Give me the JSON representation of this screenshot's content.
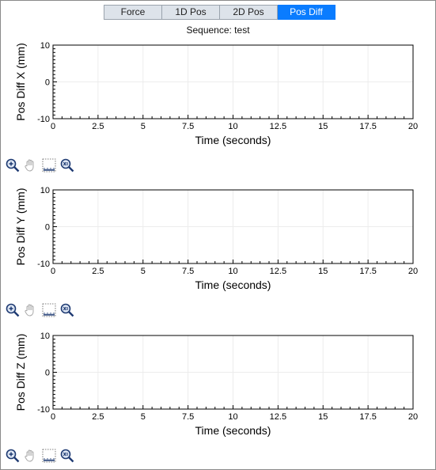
{
  "tabs": [
    {
      "label": "Force",
      "active": false
    },
    {
      "label": "1D Pos",
      "active": false
    },
    {
      "label": "2D Pos",
      "active": false
    },
    {
      "label": "Pos Diff",
      "active": true
    }
  ],
  "subtitle": "Sequence: test",
  "toolbar": {
    "icons": [
      "zoom-in-icon",
      "pan-hand-icon",
      "ruler-icon",
      "zoom-reset-icon"
    ]
  },
  "chart_data": [
    {
      "type": "line",
      "ylabel": "Pos Diff X (mm)",
      "xlabel": "Time (seconds)",
      "xlim": [
        0,
        20
      ],
      "ylim": [
        -10,
        10
      ],
      "x_ticks": [
        "0",
        "2.5",
        "5",
        "7.5",
        "10",
        "12.5",
        "15",
        "17.5",
        "20"
      ],
      "y_ticks": [
        "10",
        "0",
        "-10"
      ],
      "grid": true,
      "series": []
    },
    {
      "type": "line",
      "ylabel": "Pos Diff Y (mm)",
      "xlabel": "Time (seconds)",
      "xlim": [
        0,
        20
      ],
      "ylim": [
        -10,
        10
      ],
      "x_ticks": [
        "0",
        "2.5",
        "5",
        "7.5",
        "10",
        "12.5",
        "15",
        "17.5",
        "20"
      ],
      "y_ticks": [
        "10",
        "0",
        "-10"
      ],
      "grid": true,
      "series": []
    },
    {
      "type": "line",
      "ylabel": "Pos Diff Z (mm)",
      "xlabel": "Time (seconds)",
      "xlim": [
        0,
        20
      ],
      "ylim": [
        -10,
        10
      ],
      "x_ticks": [
        "0",
        "2.5",
        "5",
        "7.5",
        "10",
        "12.5",
        "15",
        "17.5",
        "20"
      ],
      "y_ticks": [
        "10",
        "0",
        "-10"
      ],
      "grid": true,
      "series": []
    }
  ]
}
